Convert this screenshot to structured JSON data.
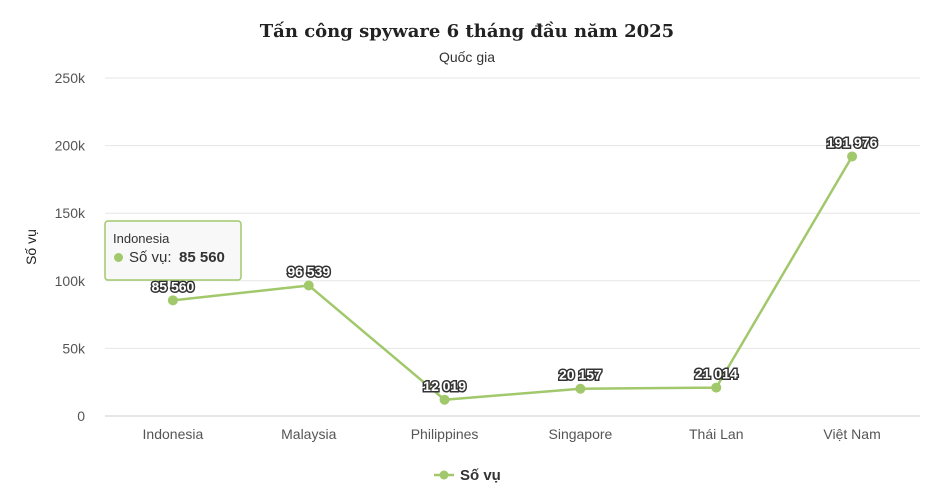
{
  "chart_data": {
    "type": "line",
    "title": "Tấn công spyware 6 tháng đầu năm 2025",
    "subtitle": "Quốc gia",
    "xlabel": "",
    "ylabel": "Số vụ",
    "categories": [
      "Indonesia",
      "Malaysia",
      "Philippines",
      "Singapore",
      "Thái Lan",
      "Việt Nam"
    ],
    "series": [
      {
        "name": "Số vụ",
        "values": [
          85560,
          96539,
          12019,
          20157,
          21014,
          191976
        ],
        "data_labels": [
          "85 560",
          "96 539",
          "12 019",
          "20 157",
          "21 014",
          "191 976"
        ],
        "color": "#a1c86b"
      }
    ],
    "ylim": [
      0,
      250000
    ],
    "yticks": [
      0,
      50000,
      100000,
      150000,
      200000,
      250000
    ],
    "ytick_labels": [
      "0",
      "50k",
      "100k",
      "150k",
      "200k",
      "250k"
    ],
    "grid": true,
    "legend": "bottom-center",
    "tooltip": {
      "category": "Indonesia",
      "series_label": "Số vụ:",
      "value": "85 560"
    }
  }
}
